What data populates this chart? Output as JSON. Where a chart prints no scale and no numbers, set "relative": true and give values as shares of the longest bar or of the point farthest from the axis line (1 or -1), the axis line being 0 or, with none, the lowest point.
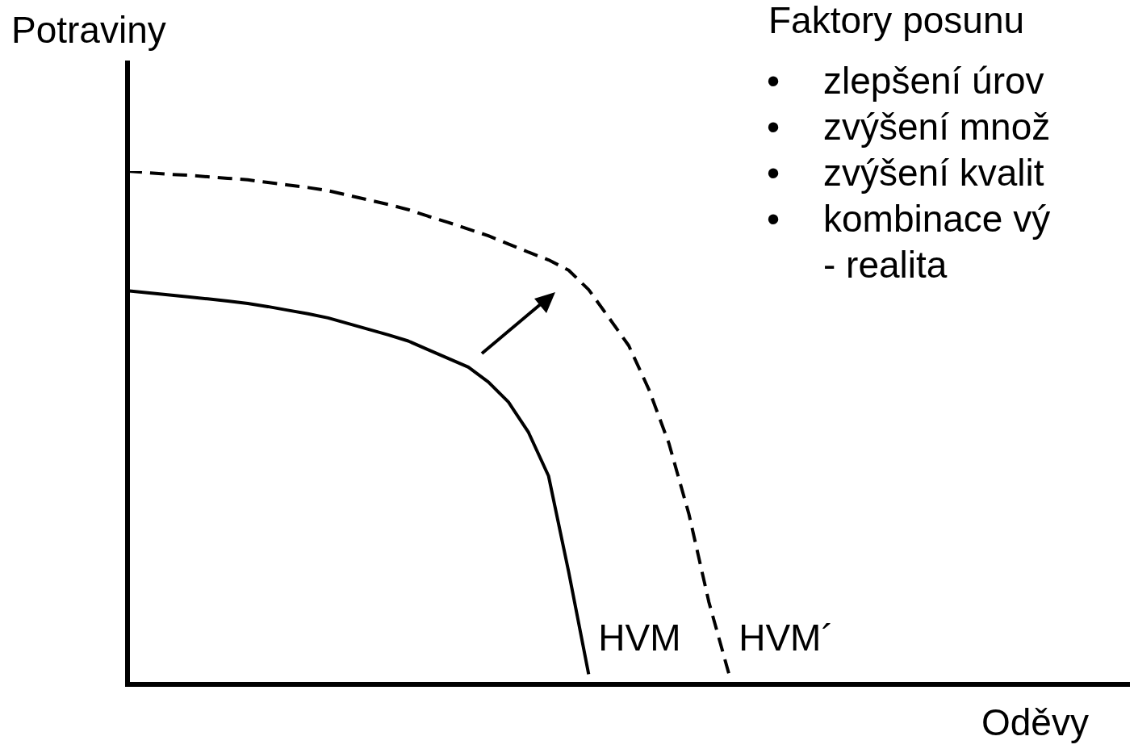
{
  "chart_data": {
    "type": "line",
    "relative": true,
    "title": "Faktory posunu",
    "xlabel": "Oděvy",
    "ylabel": "Potraviny",
    "annotations": [
      "•\tzlepšení úrov",
      "•\tzvýšení množ",
      "•\tzvýšení kvalit",
      "•\tkombinace vý",
      "\t- realita"
    ],
    "legend": false,
    "marker": "none",
    "categories": [
      null,
      null,
      null,
      null,
      null,
      null,
      null,
      null,
      null,
      null,
      null,
      null,
      null,
      null,
      null,
      null,
      null,
      null,
      null,
      null,
      null,
      null,
      null,
      null,
      null,
      null,
      null,
      null,
      null,
      null,
      null,
      null,
      null,
      null,
      null,
      null,
      null,
      null,
      null,
      null,
      null,
      null,
      null,
      null,
      null,
      null,
      null,
      null,
      null,
      null,
      null
    ],
    "series": [
      {
        "name": "HVM",
        "color": "#000000",
        "line_style": "solid",
        "values": [
          0.767,
          0.763,
          0.759,
          0.755,
          0.751,
          0.747,
          0.742,
          0.736,
          0.729,
          0.722,
          0.714,
          0.703,
          0.692,
          0.681,
          0.669,
          0.652,
          0.635,
          0.618,
          0.589,
          0.55,
          0.491,
          0.406,
          0.22,
          0.02,
          null,
          null,
          null,
          null,
          null,
          null,
          null,
          null,
          null,
          null,
          null,
          null,
          null,
          null,
          null,
          null,
          null,
          null,
          null,
          null,
          null,
          null,
          null,
          null,
          null,
          null,
          null
        ]
      },
      {
        "name": "HVM´",
        "color": "#000000",
        "line_style": "dashed",
        "values": [
          1.0,
          0.997,
          0.994,
          0.992,
          0.989,
          0.986,
          0.983,
          0.978,
          0.973,
          0.968,
          0.962,
          0.953,
          0.944,
          0.935,
          0.925,
          0.912,
          0.9,
          0.887,
          0.874,
          0.858,
          0.842,
          0.827,
          0.807,
          0.769,
          0.715,
          0.66,
          0.575,
          0.47,
          0.332,
          0.16,
          0.02,
          null,
          null,
          null,
          null,
          null,
          null,
          null,
          null,
          null,
          null,
          null,
          null,
          null,
          null,
          null,
          null,
          null,
          null,
          null,
          null
        ]
      }
    ]
  }
}
